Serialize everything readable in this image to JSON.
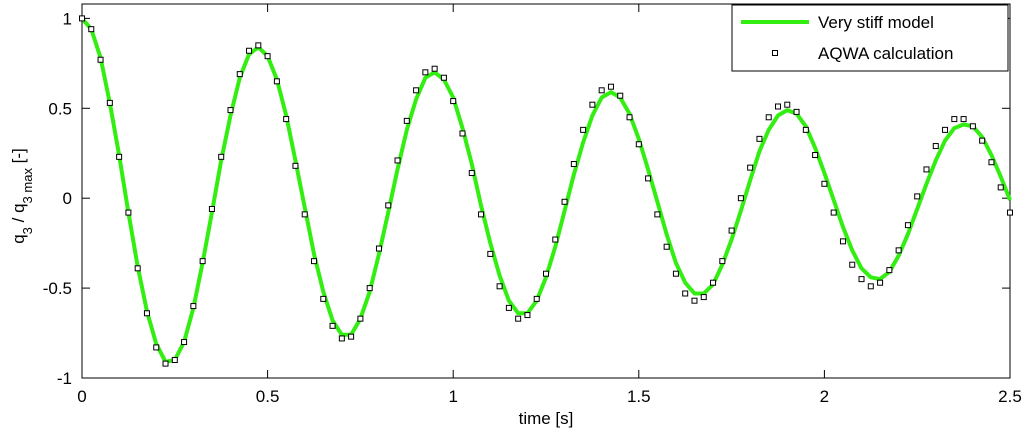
{
  "chart_data": {
    "type": "line",
    "xlabel": "time [s]",
    "ylabel": [
      "q",
      "3",
      " / q",
      "3 max",
      " [-]"
    ],
    "xlim": [
      0,
      2.5
    ],
    "ylim": [
      -1,
      1.08
    ],
    "xticks": [
      0,
      0.5,
      1,
      1.5,
      2,
      2.5
    ],
    "yticks": [
      -1,
      -0.5,
      0,
      0.5,
      1
    ],
    "grid": false,
    "legend": "upper right",
    "x": [
      0,
      0.025,
      0.05,
      0.075,
      0.1,
      0.125,
      0.15,
      0.175,
      0.2,
      0.225,
      0.25,
      0.275,
      0.3,
      0.325,
      0.35,
      0.375,
      0.4,
      0.425,
      0.45,
      0.475,
      0.5,
      0.525,
      0.55,
      0.575,
      0.6,
      0.625,
      0.65,
      0.675,
      0.7,
      0.725,
      0.75,
      0.775,
      0.8,
      0.825,
      0.85,
      0.875,
      0.9,
      0.925,
      0.95,
      0.975,
      1,
      1.025,
      1.05,
      1.075,
      1.1,
      1.125,
      1.15,
      1.175,
      1.2,
      1.225,
      1.25,
      1.275,
      1.3,
      1.325,
      1.35,
      1.375,
      1.4,
      1.425,
      1.45,
      1.475,
      1.5,
      1.525,
      1.55,
      1.575,
      1.6,
      1.625,
      1.65,
      1.675,
      1.7,
      1.725,
      1.75,
      1.775,
      1.8,
      1.825,
      1.85,
      1.875,
      1.9,
      1.925,
      1.95,
      1.975,
      2,
      2.025,
      2.05,
      2.075,
      2.1,
      2.125,
      2.15,
      2.175,
      2.2,
      2.225,
      2.25,
      2.275,
      2.3,
      2.325,
      2.35,
      2.375,
      2.4,
      2.425,
      2.45,
      2.475,
      2.5
    ],
    "series": [
      {
        "name": "Very stiff model",
        "color": "#33ee11",
        "style": "line",
        "values": [
          1.0,
          0.94,
          0.78,
          0.53,
          0.24,
          -0.08,
          -0.38,
          -0.63,
          -0.81,
          -0.91,
          -0.9,
          -0.8,
          -0.61,
          -0.36,
          -0.08,
          0.21,
          0.46,
          0.67,
          0.8,
          0.84,
          0.79,
          0.66,
          0.46,
          0.21,
          -0.05,
          -0.31,
          -0.52,
          -0.68,
          -0.76,
          -0.76,
          -0.67,
          -0.52,
          -0.31,
          -0.08,
          0.16,
          0.38,
          0.55,
          0.67,
          0.7,
          0.66,
          0.56,
          0.39,
          0.19,
          -0.04,
          -0.25,
          -0.43,
          -0.57,
          -0.64,
          -0.64,
          -0.57,
          -0.44,
          -0.27,
          -0.07,
          0.13,
          0.31,
          0.46,
          0.56,
          0.59,
          0.56,
          0.47,
          0.33,
          0.16,
          -0.02,
          -0.2,
          -0.36,
          -0.47,
          -0.53,
          -0.53,
          -0.48,
          -0.37,
          -0.23,
          -0.07,
          0.1,
          0.26,
          0.38,
          0.46,
          0.49,
          0.47,
          0.4,
          0.28,
          0.14,
          -0.01,
          -0.16,
          -0.29,
          -0.39,
          -0.44,
          -0.45,
          -0.41,
          -0.32,
          -0.2,
          -0.06,
          0.08,
          0.21,
          0.32,
          0.39,
          0.41,
          0.4,
          0.34,
          0.24,
          0.12,
          -0.01
        ]
      },
      {
        "name": "AQWA calculation",
        "color": "#000000",
        "style": "square",
        "values": [
          1.0,
          0.94,
          0.77,
          0.53,
          0.23,
          -0.08,
          -0.39,
          -0.64,
          -0.83,
          -0.92,
          -0.9,
          -0.8,
          -0.6,
          -0.35,
          -0.06,
          0.23,
          0.49,
          0.69,
          0.82,
          0.85,
          0.79,
          0.65,
          0.44,
          0.18,
          -0.09,
          -0.35,
          -0.56,
          -0.71,
          -0.78,
          -0.77,
          -0.67,
          -0.5,
          -0.28,
          -0.04,
          0.21,
          0.43,
          0.6,
          0.7,
          0.72,
          0.67,
          0.54,
          0.36,
          0.14,
          -0.09,
          -0.31,
          -0.49,
          -0.61,
          -0.67,
          -0.65,
          -0.56,
          -0.42,
          -0.23,
          -0.02,
          0.19,
          0.38,
          0.52,
          0.6,
          0.62,
          0.57,
          0.45,
          0.3,
          0.11,
          -0.09,
          -0.27,
          -0.42,
          -0.53,
          -0.57,
          -0.55,
          -0.47,
          -0.35,
          -0.18,
          0.0,
          0.17,
          0.33,
          0.45,
          0.51,
          0.52,
          0.48,
          0.38,
          0.24,
          0.08,
          -0.08,
          -0.24,
          -0.37,
          -0.45,
          -0.49,
          -0.47,
          -0.4,
          -0.29,
          -0.15,
          0.01,
          0.16,
          0.29,
          0.38,
          0.44,
          0.44,
          0.4,
          0.32,
          0.2,
          0.06,
          -0.08
        ]
      }
    ]
  }
}
